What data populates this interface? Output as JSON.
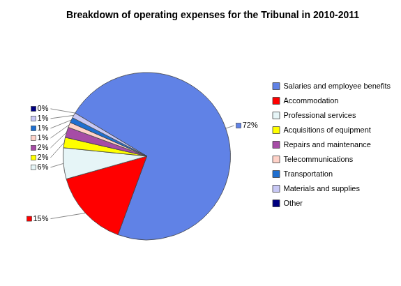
{
  "chart_data": {
    "type": "pie",
    "title": "Breakdown of operating expenses for the Tribunal in 2010-2011",
    "categories": [
      "Salaries and employee benefits",
      "Accommodation",
      "Professional services",
      "Acquisitions of equipment",
      "Repairs and maintenance",
      "Telecommunications",
      "Transportation",
      "Materials and supplies",
      "Other"
    ],
    "values": [
      72,
      15,
      6,
      2,
      2,
      1,
      1,
      1,
      0
    ],
    "value_labels": [
      "72%",
      "15%",
      "6%",
      "2%",
      "2%",
      "1%",
      "1%",
      "1%",
      "0%"
    ],
    "colors": [
      "#6082e6",
      "#ff0000",
      "#e6f5f7",
      "#ffff00",
      "#a64ca6",
      "#ffd2c8",
      "#1f6fd0",
      "#c8c8f5",
      "#000080"
    ],
    "legend": "right",
    "data_labels": true
  }
}
